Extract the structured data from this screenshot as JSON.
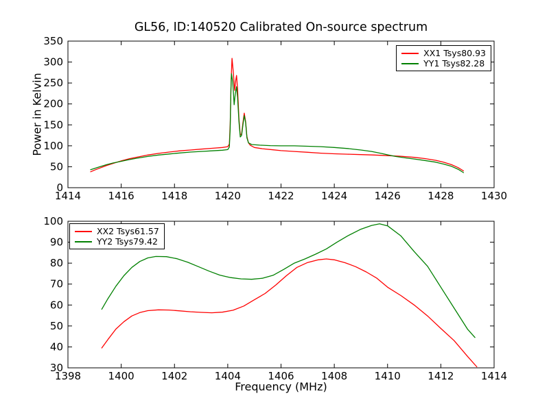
{
  "figure": {
    "title": "GL56, ID:140520 Calibrated On-source spectrum",
    "background": "#ffffff",
    "frame_color": "#000000"
  },
  "chart_data": [
    {
      "type": "line",
      "title": "GL56, ID:140520 Calibrated On-source spectrum",
      "xlabel": "",
      "ylabel": "Power in Kelvin",
      "xlim": [
        1414,
        1430
      ],
      "ylim": [
        0,
        350
      ],
      "xticks": [
        1414,
        1416,
        1418,
        1420,
        1422,
        1424,
        1426,
        1428,
        1430
      ],
      "yticks": [
        0,
        50,
        100,
        150,
        200,
        250,
        300,
        350
      ],
      "grid": false,
      "legend_position": "top-right",
      "legend": [
        "XX1 Tsys80.93",
        "YY1 Tsys82.28"
      ],
      "series": [
        {
          "name": "XX1 Tsys80.93",
          "color": "#ff0000",
          "points": [
            [
              1414.85,
              38
            ],
            [
              1415.0,
              42
            ],
            [
              1415.2,
              47
            ],
            [
              1415.45,
              53
            ],
            [
              1415.7,
              58
            ],
            [
              1416.0,
              64
            ],
            [
              1416.3,
              69
            ],
            [
              1416.6,
              73
            ],
            [
              1417.0,
              78
            ],
            [
              1417.4,
              82
            ],
            [
              1417.8,
              85
            ],
            [
              1418.2,
              88
            ],
            [
              1418.6,
              90
            ],
            [
              1419.0,
              92
            ],
            [
              1419.4,
              94
            ],
            [
              1419.8,
              96
            ],
            [
              1420.0,
              98
            ],
            [
              1420.06,
              104
            ],
            [
              1420.09,
              150
            ],
            [
              1420.13,
              260
            ],
            [
              1420.16,
              309
            ],
            [
              1420.21,
              275
            ],
            [
              1420.26,
              232
            ],
            [
              1420.3,
              256
            ],
            [
              1420.33,
              268
            ],
            [
              1420.37,
              235
            ],
            [
              1420.42,
              165
            ],
            [
              1420.47,
              126
            ],
            [
              1420.52,
              128
            ],
            [
              1420.57,
              155
            ],
            [
              1420.62,
              178
            ],
            [
              1420.67,
              158
            ],
            [
              1420.72,
              122
            ],
            [
              1420.78,
              107
            ],
            [
              1420.85,
              101
            ],
            [
              1421.0,
              96
            ],
            [
              1421.3,
              93
            ],
            [
              1421.7,
              90.5
            ],
            [
              1422.0,
              88.5
            ],
            [
              1422.5,
              86.5
            ],
            [
              1423.0,
              84.5
            ],
            [
              1423.5,
              82.5
            ],
            [
              1424.0,
              81
            ],
            [
              1424.5,
              80
            ],
            [
              1425.0,
              79
            ],
            [
              1425.5,
              78
            ],
            [
              1426.0,
              76.5
            ],
            [
              1426.5,
              75
            ],
            [
              1427.0,
              72.5
            ],
            [
              1427.4,
              69.5
            ],
            [
              1427.8,
              65.5
            ],
            [
              1428.1,
              61
            ],
            [
              1428.4,
              55
            ],
            [
              1428.65,
              48
            ],
            [
              1428.85,
              40
            ]
          ]
        },
        {
          "name": "YY1 Tsys82.28",
          "color": "#008000",
          "points": [
            [
              1414.85,
              43
            ],
            [
              1415.0,
              46
            ],
            [
              1415.2,
              50
            ],
            [
              1415.45,
              55
            ],
            [
              1415.7,
              59
            ],
            [
              1416.0,
              63
            ],
            [
              1416.3,
              67
            ],
            [
              1416.6,
              70.5
            ],
            [
              1417.0,
              74.5
            ],
            [
              1417.4,
              78
            ],
            [
              1417.8,
              80.5
            ],
            [
              1418.2,
              83
            ],
            [
              1418.6,
              85
            ],
            [
              1419.0,
              86.5
            ],
            [
              1419.4,
              88
            ],
            [
              1419.8,
              89.5
            ],
            [
              1420.0,
              91
            ],
            [
              1420.06,
              97
            ],
            [
              1420.09,
              140
            ],
            [
              1420.12,
              235
            ],
            [
              1420.14,
              272
            ],
            [
              1420.19,
              252
            ],
            [
              1420.24,
              198
            ],
            [
              1420.28,
              222
            ],
            [
              1420.33,
              241
            ],
            [
              1420.37,
              215
            ],
            [
              1420.42,
              158
            ],
            [
              1420.47,
              121
            ],
            [
              1420.52,
              125
            ],
            [
              1420.57,
              150
            ],
            [
              1420.62,
              172
            ],
            [
              1420.67,
              156
            ],
            [
              1420.72,
              119
            ],
            [
              1420.78,
              107
            ],
            [
              1420.9,
              103
            ],
            [
              1421.2,
              101.5
            ],
            [
              1421.6,
              100.5
            ],
            [
              1422.0,
              100
            ],
            [
              1422.5,
              100
            ],
            [
              1423.0,
              99
            ],
            [
              1423.5,
              98
            ],
            [
              1424.0,
              96
            ],
            [
              1424.5,
              93.5
            ],
            [
              1425.0,
              90
            ],
            [
              1425.4,
              86.5
            ],
            [
              1425.8,
              81.5
            ],
            [
              1426.0,
              78.5
            ],
            [
              1426.3,
              74.5
            ],
            [
              1426.7,
              71
            ],
            [
              1427.0,
              68.5
            ],
            [
              1427.4,
              65
            ],
            [
              1427.8,
              61
            ],
            [
              1428.1,
              56.5
            ],
            [
              1428.4,
              51
            ],
            [
              1428.65,
              44
            ],
            [
              1428.85,
              36
            ]
          ]
        }
      ]
    },
    {
      "type": "line",
      "title": "",
      "xlabel": "Frequency (MHz)",
      "ylabel": "",
      "xlim": [
        1398,
        1414
      ],
      "ylim": [
        30,
        100
      ],
      "xticks": [
        1398,
        1400,
        1402,
        1404,
        1406,
        1408,
        1410,
        1412,
        1414
      ],
      "yticks": [
        30,
        40,
        50,
        60,
        70,
        80,
        90,
        100
      ],
      "grid": false,
      "legend_position": "top-left",
      "legend": [
        "XX2 Tsys61.57",
        "YY2 Tsys79.42"
      ],
      "series": [
        {
          "name": "XX2 Tsys61.57",
          "color": "#ff0000",
          "points": [
            [
              1399.27,
              39.5
            ],
            [
              1399.5,
              43.5
            ],
            [
              1399.8,
              48.5
            ],
            [
              1400.1,
              52
            ],
            [
              1400.4,
              54.8
            ],
            [
              1400.7,
              56.4
            ],
            [
              1401.0,
              57.3
            ],
            [
              1401.4,
              57.7
            ],
            [
              1401.8,
              57.6
            ],
            [
              1402.2,
              57.2
            ],
            [
              1402.6,
              56.8
            ],
            [
              1403.0,
              56.5
            ],
            [
              1403.4,
              56.3
            ],
            [
              1403.8,
              56.6
            ],
            [
              1404.2,
              57.5
            ],
            [
              1404.6,
              59.5
            ],
            [
              1405.0,
              62.5
            ],
            [
              1405.4,
              65.5
            ],
            [
              1405.8,
              69.5
            ],
            [
              1406.2,
              74
            ],
            [
              1406.6,
              78
            ],
            [
              1407.0,
              80.3
            ],
            [
              1407.4,
              81.6
            ],
            [
              1407.7,
              82
            ],
            [
              1408.0,
              81.6
            ],
            [
              1408.4,
              80.2
            ],
            [
              1408.8,
              78.3
            ],
            [
              1409.2,
              75.8
            ],
            [
              1409.6,
              72.8
            ],
            [
              1410.0,
              68.5
            ],
            [
              1410.5,
              64.5
            ],
            [
              1411.0,
              60
            ],
            [
              1411.5,
              54.8
            ],
            [
              1412.0,
              48.8
            ],
            [
              1412.5,
              43
            ],
            [
              1413.0,
              35.5
            ],
            [
              1413.35,
              30.5
            ]
          ]
        },
        {
          "name": "YY2 Tsys79.42",
          "color": "#008000",
          "points": [
            [
              1399.27,
              58
            ],
            [
              1399.5,
              63
            ],
            [
              1399.8,
              69
            ],
            [
              1400.1,
              74
            ],
            [
              1400.4,
              78
            ],
            [
              1400.7,
              80.8
            ],
            [
              1401.0,
              82.5
            ],
            [
              1401.3,
              83.2
            ],
            [
              1401.7,
              83.1
            ],
            [
              1402.1,
              82.1
            ],
            [
              1402.5,
              80.4
            ],
            [
              1402.9,
              78.3
            ],
            [
              1403.3,
              76.2
            ],
            [
              1403.7,
              74.3
            ],
            [
              1404.1,
              73.1
            ],
            [
              1404.5,
              72.5
            ],
            [
              1404.9,
              72.3
            ],
            [
              1405.3,
              72.8
            ],
            [
              1405.7,
              74.2
            ],
            [
              1406.1,
              77
            ],
            [
              1406.5,
              80
            ],
            [
              1406.9,
              82
            ],
            [
              1407.3,
              84.3
            ],
            [
              1407.7,
              86.8
            ],
            [
              1408.1,
              90
            ],
            [
              1408.5,
              93
            ],
            [
              1409.0,
              96.2
            ],
            [
              1409.4,
              98
            ],
            [
              1409.7,
              98.8
            ],
            [
              1410.0,
              97.8
            ],
            [
              1410.5,
              93
            ],
            [
              1411.0,
              85.5
            ],
            [
              1411.5,
              78.5
            ],
            [
              1412.0,
              68.5
            ],
            [
              1412.5,
              58.5
            ],
            [
              1413.0,
              48.5
            ],
            [
              1413.28,
              44.5
            ]
          ]
        }
      ]
    }
  ]
}
